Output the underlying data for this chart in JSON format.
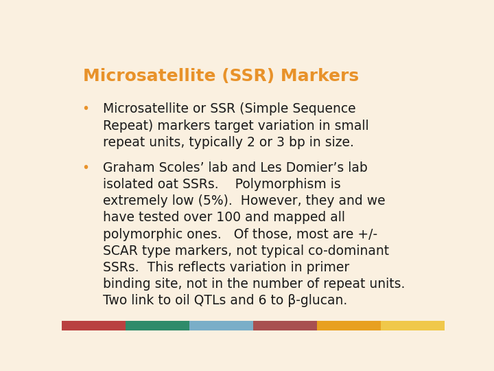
{
  "title": "Microsatellite (SSR) Markers",
  "title_color": "#E8922A",
  "background_color": "#FAF0E0",
  "text_color": "#1A1A1A",
  "bullet_color": "#E8922A",
  "bullet1_lines": [
    "Microsatellite or SSR (Simple Sequence",
    "Repeat) markers target variation in small",
    "repeat units, typically 2 or 3 bp in size."
  ],
  "bullet2_lines": [
    "Graham Scoles’ lab and Les Domier’s lab",
    "isolated oat SSRs.    Polymorphism is",
    "extremely low (5%).  However, they and we",
    "have tested over 100 and mapped all",
    "polymorphic ones.   Of those, most are +/-",
    "SCAR type markers, not typical co-dominant",
    "SSRs.  This reflects variation in primer",
    "binding site, not in the number of repeat units.",
    "Two link to oil QTLs and 6 to β-glucan."
  ],
  "footer_colors": [
    "#B94040",
    "#2E8B6A",
    "#7AAEC8",
    "#A85050",
    "#E8A020",
    "#F0C84A"
  ],
  "font_family": "DejaVu Sans"
}
